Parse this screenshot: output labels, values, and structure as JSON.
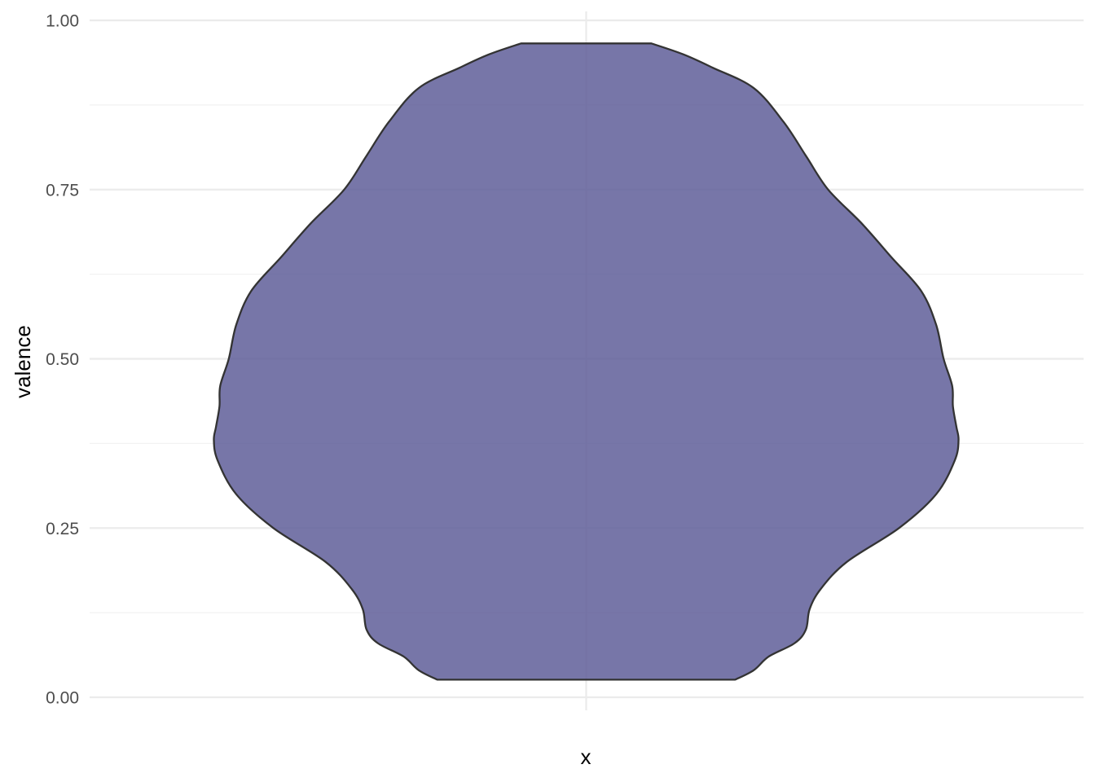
{
  "chart_data": {
    "type": "violin",
    "xlabel": "x",
    "ylabel": "valence",
    "ylim": [
      0,
      1
    ],
    "y_ticks": [
      {
        "value": 0.0,
        "label": "0.00"
      },
      {
        "value": 0.25,
        "label": "0.25"
      },
      {
        "value": 0.5,
        "label": "0.50"
      },
      {
        "value": 0.75,
        "label": "0.75"
      },
      {
        "value": 1.0,
        "label": "1.00"
      }
    ],
    "y_minor_ticks": [
      0.125,
      0.375,
      0.625,
      0.875
    ],
    "grid": true,
    "legend": "none",
    "fill_color": "#5b5a96",
    "fill_opacity": 0.83,
    "outline_color": "#333333",
    "series": [
      {
        "min": 0.026,
        "max": 0.966,
        "density_profile": {
          "valence": [
            0.026,
            0.04,
            0.06,
            0.08,
            0.1,
            0.13,
            0.16,
            0.2,
            0.25,
            0.3,
            0.35,
            0.38,
            0.4,
            0.43,
            0.46,
            0.5,
            0.55,
            0.6,
            0.65,
            0.7,
            0.75,
            0.8,
            0.85,
            0.9,
            0.93,
            0.95,
            0.966
          ],
          "relative_width": [
            0.4,
            0.45,
            0.49,
            0.56,
            0.59,
            0.6,
            0.63,
            0.7,
            0.84,
            0.94,
            0.99,
            1.0,
            0.994,
            0.985,
            0.983,
            0.96,
            0.94,
            0.9,
            0.82,
            0.74,
            0.65,
            0.59,
            0.53,
            0.45,
            0.34,
            0.26,
            0.175
          ]
        }
      }
    ]
  }
}
